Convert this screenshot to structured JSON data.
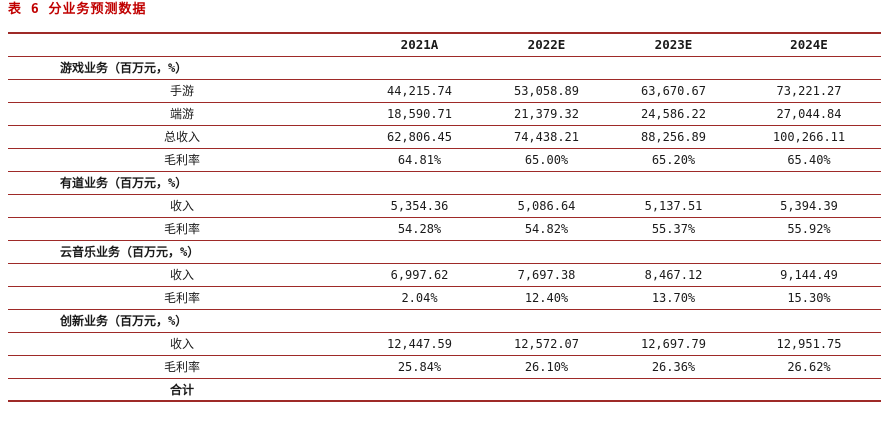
{
  "title": "表 6 分业务预测数据",
  "colors": {
    "title_red": "#c00000",
    "line_red": "#9e2a28"
  },
  "table": {
    "header": [
      "",
      "2021A",
      "2022E",
      "2023E",
      "2024E"
    ],
    "rows": [
      {
        "type": "section",
        "label": "游戏业务（百万元，%）",
        "values": [
          "",
          "",
          "",
          ""
        ]
      },
      {
        "type": "data",
        "label": "手游",
        "values": [
          "44,215.74",
          "53,058.89",
          "63,670.67",
          "73,221.27"
        ]
      },
      {
        "type": "data",
        "label": "端游",
        "values": [
          "18,590.71",
          "21,379.32",
          "24,586.22",
          "27,044.84"
        ]
      },
      {
        "type": "data",
        "label": "总收入",
        "values": [
          "62,806.45",
          "74,438.21",
          "88,256.89",
          "100,266.11"
        ]
      },
      {
        "type": "data",
        "label": "毛利率",
        "values": [
          "64.81%",
          "65.00%",
          "65.20%",
          "65.40%"
        ]
      },
      {
        "type": "section",
        "label": "有道业务（百万元，%）",
        "values": [
          "",
          "",
          "",
          ""
        ]
      },
      {
        "type": "data",
        "label": "收入",
        "values": [
          "5,354.36",
          "5,086.64",
          "5,137.51",
          "5,394.39"
        ]
      },
      {
        "type": "data",
        "label": "毛利率",
        "values": [
          "54.28%",
          "54.82%",
          "55.37%",
          "55.92%"
        ]
      },
      {
        "type": "section",
        "label": "云音乐业务（百万元，%）",
        "values": [
          "",
          "",
          "",
          ""
        ]
      },
      {
        "type": "data",
        "label": "收入",
        "values": [
          "6,997.62",
          "7,697.38",
          "8,467.12",
          "9,144.49"
        ]
      },
      {
        "type": "data",
        "label": "毛利率",
        "values": [
          "2.04%",
          "12.40%",
          "13.70%",
          "15.30%"
        ]
      },
      {
        "type": "section",
        "label": "创新业务（百万元，%）",
        "values": [
          "",
          "",
          "",
          ""
        ]
      },
      {
        "type": "data",
        "label": "收入",
        "values": [
          "12,447.59",
          "12,572.07",
          "12,697.79",
          "12,951.75"
        ]
      },
      {
        "type": "data",
        "label": "毛利率",
        "values": [
          "25.84%",
          "26.10%",
          "26.36%",
          "26.62%"
        ]
      },
      {
        "type": "total",
        "label": "合计",
        "values": [
          "",
          "",
          "",
          ""
        ]
      }
    ]
  }
}
